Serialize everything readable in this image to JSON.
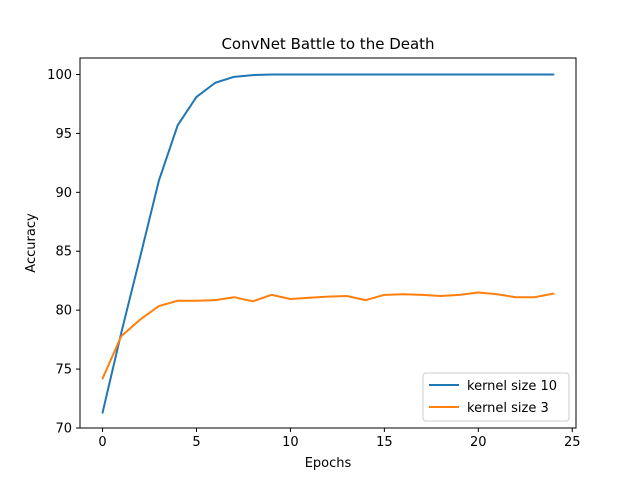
{
  "chart_data": {
    "type": "line",
    "title": "ConvNet Battle to the Death",
    "xlabel": "Epochs",
    "ylabel": "Accuracy",
    "xlim": [
      -1.2,
      25.2
    ],
    "ylim": [
      70,
      101.4
    ],
    "xticks": [
      0,
      5,
      10,
      15,
      20,
      25
    ],
    "yticks": [
      70,
      75,
      80,
      85,
      90,
      95,
      100
    ],
    "grid": false,
    "legend_position": "lower-right",
    "x": [
      0,
      1,
      2,
      3,
      4,
      5,
      6,
      7,
      8,
      9,
      10,
      11,
      12,
      13,
      14,
      15,
      16,
      17,
      18,
      19,
      20,
      21,
      22,
      23,
      24
    ],
    "series": [
      {
        "name": "kernel size 10",
        "color": "#1f77b4",
        "values": [
          71.3,
          78.1,
          84.5,
          91.0,
          95.7,
          98.1,
          99.3,
          99.8,
          99.95,
          100,
          100,
          100,
          100,
          100,
          100,
          100,
          100,
          100,
          100,
          100,
          100,
          100,
          100,
          100,
          100
        ]
      },
      {
        "name": "kernel size 3",
        "color": "#ff7f0e",
        "values": [
          74.2,
          77.8,
          79.2,
          80.35,
          80.8,
          80.8,
          80.85,
          81.1,
          80.75,
          81.3,
          80.95,
          81.05,
          81.15,
          81.2,
          80.85,
          81.3,
          81.35,
          81.3,
          81.2,
          81.3,
          81.5,
          81.35,
          81.1,
          81.1,
          81.4
        ]
      }
    ]
  }
}
